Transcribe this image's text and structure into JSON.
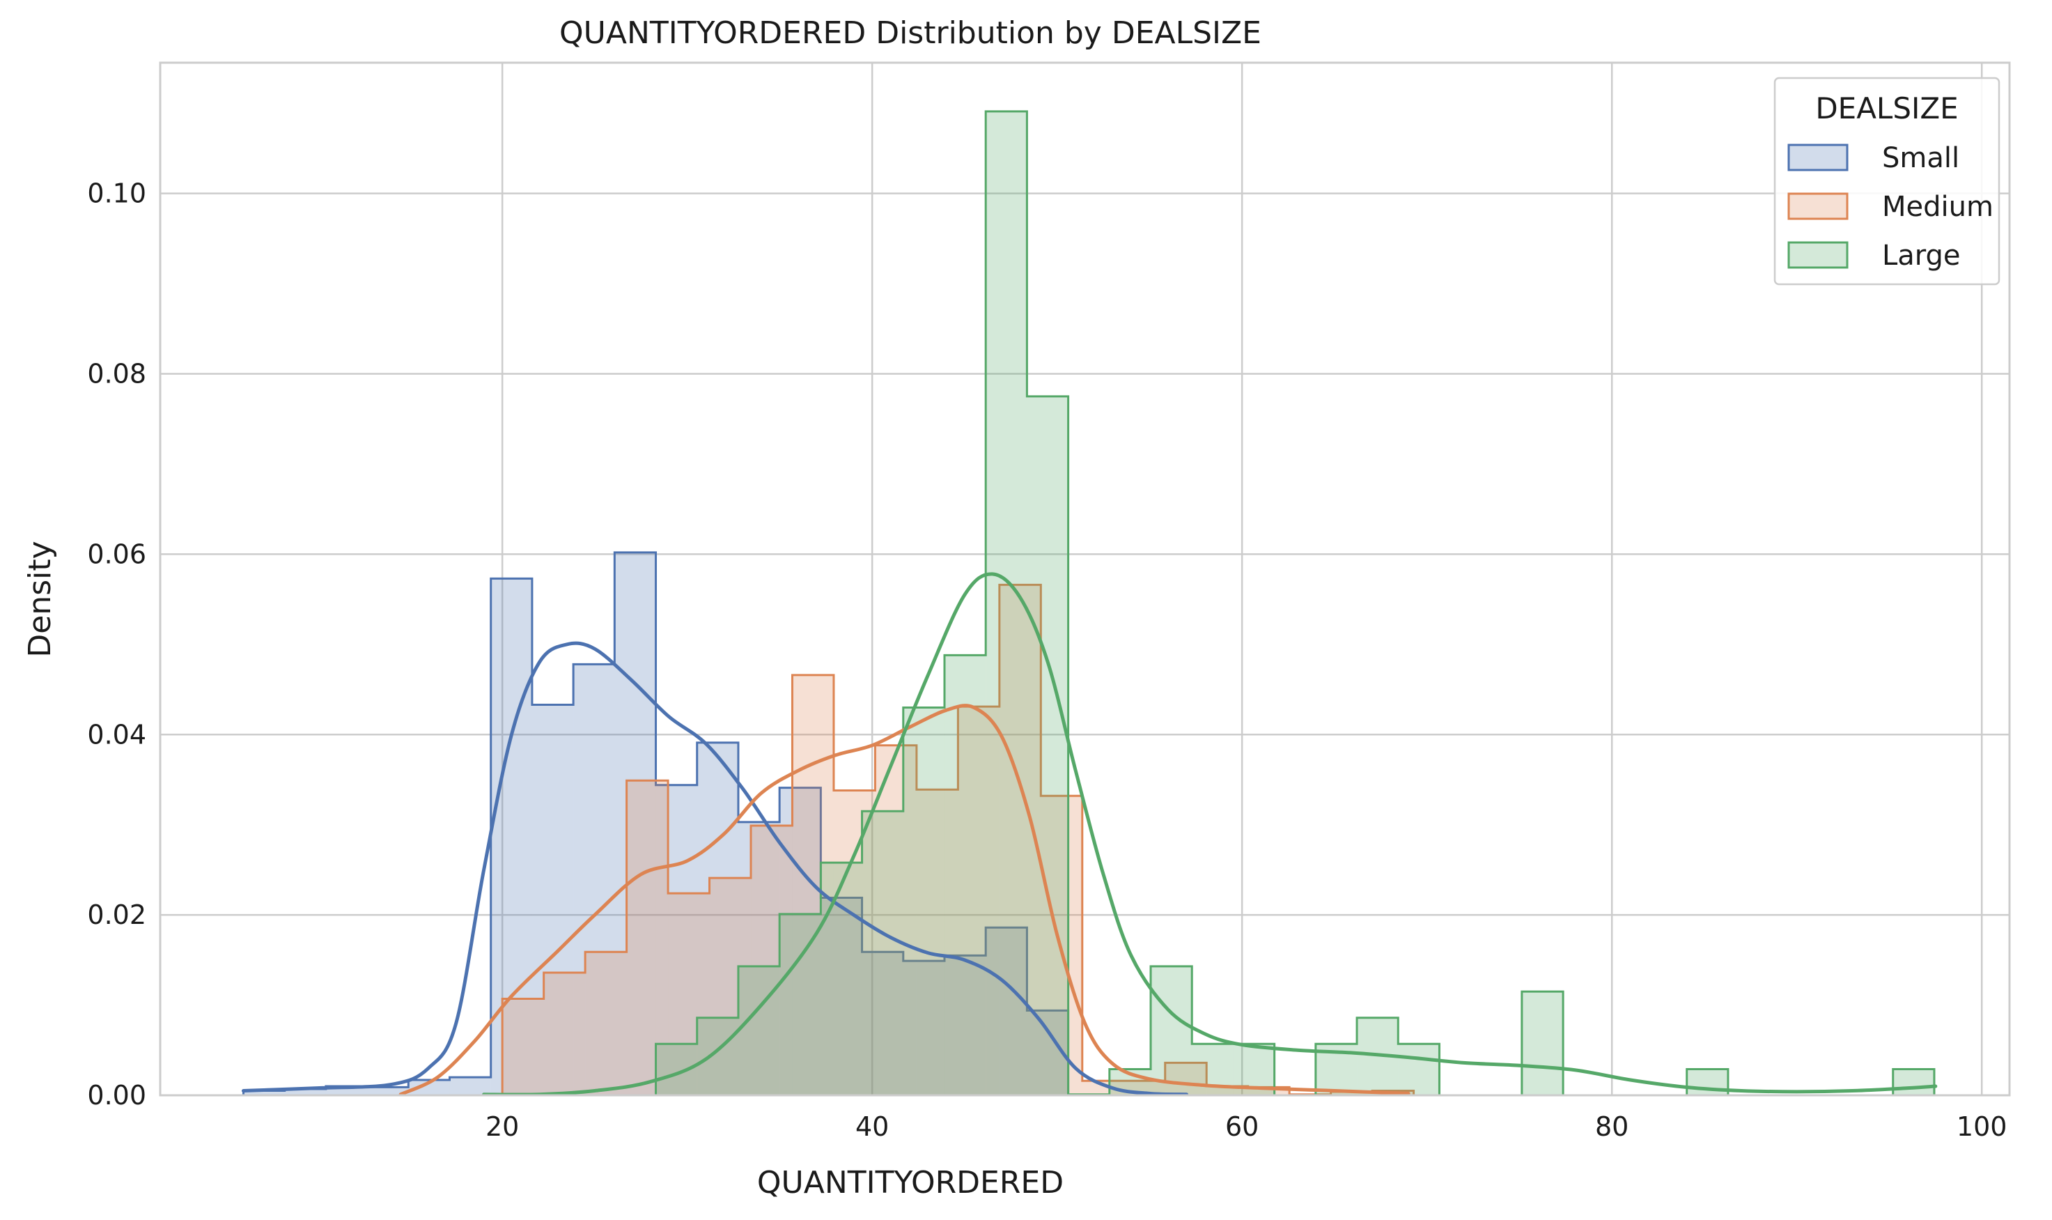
{
  "chart_data": {
    "type": "histogram",
    "title": "QUANTITYORDERED Distribution by DEALSIZE",
    "xlabel": "QUANTITYORDERED",
    "ylabel": "Density",
    "xlim": [
      1.5,
      101.5
    ],
    "ylim": [
      0,
      0.1145
    ],
    "xticks": [
      20,
      40,
      60,
      80,
      100
    ],
    "yticks": [
      0.0,
      0.02,
      0.04,
      0.06,
      0.08,
      0.1
    ],
    "ytick_labels": [
      "0.00",
      "0.02",
      "0.04",
      "0.06",
      "0.08",
      "0.10"
    ],
    "grid": true,
    "legend": {
      "title": "DEALSIZE",
      "placement": "top-right"
    },
    "series": [
      {
        "name": "Small",
        "color": "#4c72b0",
        "fill_opacity": 0.25,
        "bin_edges": [
          6,
          8.23,
          10.46,
          12.69,
          14.92,
          17.15,
          19.38,
          21.61,
          23.84,
          26.07,
          28.3,
          30.53,
          32.76,
          34.99,
          37.22,
          39.45,
          41.68,
          43.91,
          46.14,
          48.37,
          50.6
        ],
        "densities": [
          0.0005,
          0.0007,
          0.001,
          0.0009,
          0.0017,
          0.002,
          0.0573,
          0.0433,
          0.0478,
          0.0602,
          0.0344,
          0.0391,
          0.0303,
          0.0341,
          0.0219,
          0.0159,
          0.0149,
          0.0155,
          0.0186,
          0.0094
        ],
        "kde": [
          [
            6,
            0.0005
          ],
          [
            10,
            0.0008
          ],
          [
            14,
            0.0012
          ],
          [
            16,
            0.003
          ],
          [
            17.5,
            0.008
          ],
          [
            19,
            0.025
          ],
          [
            20.5,
            0.04
          ],
          [
            22,
            0.048
          ],
          [
            23.5,
            0.05
          ],
          [
            25,
            0.0495
          ],
          [
            27,
            0.046
          ],
          [
            29,
            0.042
          ],
          [
            31,
            0.039
          ],
          [
            33,
            0.034
          ],
          [
            35,
            0.028
          ],
          [
            37,
            0.023
          ],
          [
            39,
            0.02
          ],
          [
            41,
            0.0175
          ],
          [
            43,
            0.0158
          ],
          [
            45,
            0.015
          ],
          [
            47,
            0.0128
          ],
          [
            49,
            0.0085
          ],
          [
            51,
            0.003
          ],
          [
            53,
            0.0008
          ],
          [
            55,
            0.0002
          ],
          [
            57,
            0.0001
          ]
        ]
      },
      {
        "name": "Medium",
        "color": "#dd8452",
        "fill_opacity": 0.25,
        "bin_edges": [
          20,
          22.24,
          24.48,
          26.72,
          28.96,
          31.2,
          33.44,
          35.68,
          37.92,
          40.16,
          42.4,
          44.64,
          46.88,
          49.12,
          51.36,
          53.6,
          55.84,
          58.08,
          60.32,
          62.56,
          64.8,
          67.04,
          69.28
        ],
        "densities": [
          0.0107,
          0.0136,
          0.0159,
          0.0349,
          0.0224,
          0.0241,
          0.0299,
          0.0466,
          0.0338,
          0.0388,
          0.0339,
          0.0431,
          0.0566,
          0.0332,
          0.0016,
          0.0016,
          0.0036,
          0.001,
          0.0009,
          0.0001,
          0.0004,
          0.0005
        ],
        "kde": [
          [
            14.5,
            0.0001
          ],
          [
            16.5,
            0.002
          ],
          [
            18.5,
            0.006
          ],
          [
            20.5,
            0.011
          ],
          [
            23,
            0.016
          ],
          [
            25,
            0.02
          ],
          [
            27.5,
            0.0245
          ],
          [
            30,
            0.026
          ],
          [
            32,
            0.029
          ],
          [
            34,
            0.0335
          ],
          [
            36,
            0.036
          ],
          [
            38,
            0.0377
          ],
          [
            40,
            0.0388
          ],
          [
            42,
            0.0408
          ],
          [
            44,
            0.0427
          ],
          [
            45.5,
            0.043
          ],
          [
            47,
            0.0398
          ],
          [
            48.5,
            0.031
          ],
          [
            50,
            0.0178
          ],
          [
            51.5,
            0.008
          ],
          [
            53,
            0.0035
          ],
          [
            55,
            0.0018
          ],
          [
            58,
            0.0011
          ],
          [
            61,
            0.0008
          ],
          [
            65,
            0.0005
          ],
          [
            69,
            0.0002
          ]
        ]
      },
      {
        "name": "Large",
        "color": "#55a868",
        "fill_opacity": 0.25,
        "bin_edges": [
          28.3,
          30.53,
          32.76,
          34.99,
          37.22,
          39.45,
          41.68,
          43.91,
          46.14,
          48.37,
          50.6,
          52.83,
          55.06,
          57.29,
          59.52,
          61.75,
          63.98,
          66.21,
          68.44,
          70.67,
          72.9,
          75.13,
          77.36,
          79.59,
          81.82,
          84.05,
          86.28,
          88.51,
          90.74,
          92.97,
          95.2,
          97.43
        ],
        "densities": [
          0.0057,
          0.0086,
          0.0143,
          0.0201,
          0.0258,
          0.0315,
          0.043,
          0.0488,
          0.1091,
          0.0775,
          0.0001,
          0.0029,
          0.0143,
          0.0057,
          0.0057,
          0,
          0.0057,
          0.0086,
          0.0057,
          0,
          0,
          0.0115,
          0,
          0,
          0,
          0.0029,
          0,
          0,
          0,
          0,
          0.0029
        ],
        "kde": [
          [
            19,
            0.0001
          ],
          [
            22,
            0.0001
          ],
          [
            25,
            0.0005
          ],
          [
            28,
            0.0015
          ],
          [
            31,
            0.004
          ],
          [
            34,
            0.01
          ],
          [
            37,
            0.018
          ],
          [
            39,
            0.0265
          ],
          [
            41,
            0.0365
          ],
          [
            43,
            0.0465
          ],
          [
            45,
            0.0555
          ],
          [
            46.5,
            0.0578
          ],
          [
            48,
            0.0552
          ],
          [
            49.5,
            0.048
          ],
          [
            51,
            0.036
          ],
          [
            52.5,
            0.0245
          ],
          [
            54,
            0.0155
          ],
          [
            56,
            0.0095
          ],
          [
            58,
            0.0068
          ],
          [
            60,
            0.0056
          ],
          [
            63,
            0.005
          ],
          [
            66,
            0.0047
          ],
          [
            69,
            0.0042
          ],
          [
            72,
            0.0036
          ],
          [
            75,
            0.0033
          ],
          [
            78,
            0.0028
          ],
          [
            81,
            0.0017
          ],
          [
            84,
            0.0009
          ],
          [
            87,
            0.0005
          ],
          [
            90,
            0.0004
          ],
          [
            93,
            0.0005
          ],
          [
            96,
            0.0008
          ],
          [
            97.5,
            0.001
          ]
        ]
      }
    ]
  }
}
